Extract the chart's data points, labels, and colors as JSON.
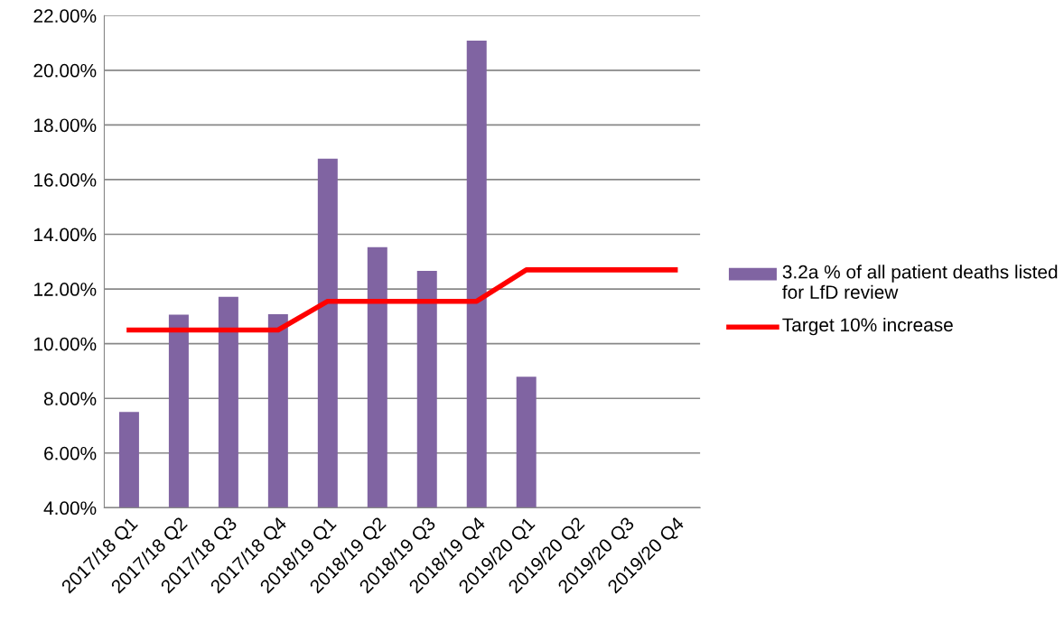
{
  "chart_data": {
    "type": "bar",
    "categories": [
      "2017/18 Q1",
      "2017/18 Q2",
      "2017/18 Q3",
      "2017/18 Q4",
      "2018/19 Q1",
      "2018/19 Q2",
      "2018/19 Q3",
      "2018/19 Q4",
      "2019/20 Q1",
      "2019/20 Q2",
      "2019/20 Q3",
      "2019/20 Q4"
    ],
    "series": [
      {
        "name": "3.2a % of all patient deaths listed for LfD review",
        "color": "#8064a2",
        "values": [
          7.5,
          11.06,
          11.71,
          11.08,
          16.77,
          13.53,
          12.66,
          21.08,
          8.79,
          null,
          null,
          null
        ]
      },
      {
        "name": "Target 10% increase",
        "type": "line",
        "color": "#ff0000",
        "values": [
          10.5,
          10.5,
          10.5,
          10.5,
          11.55,
          11.55,
          11.55,
          11.55,
          12.7,
          12.7,
          12.7,
          12.7
        ]
      }
    ],
    "ylim": [
      4,
      22
    ],
    "yticks": [
      {
        "value": 4,
        "label": "4.00%"
      },
      {
        "value": 6,
        "label": "6.00%"
      },
      {
        "value": 8,
        "label": "8.00%"
      },
      {
        "value": 10,
        "label": "10.00%"
      },
      {
        "value": 12,
        "label": "12.00%"
      },
      {
        "value": 14,
        "label": "14.00%"
      },
      {
        "value": 16,
        "label": "16.00%"
      },
      {
        "value": 18,
        "label": "18.00%"
      },
      {
        "value": 20,
        "label": "20.00%"
      },
      {
        "value": 22,
        "label": "22.00%"
      }
    ],
    "grid": "y",
    "legend": "right",
    "marker": "none",
    "line_style": "solid"
  }
}
